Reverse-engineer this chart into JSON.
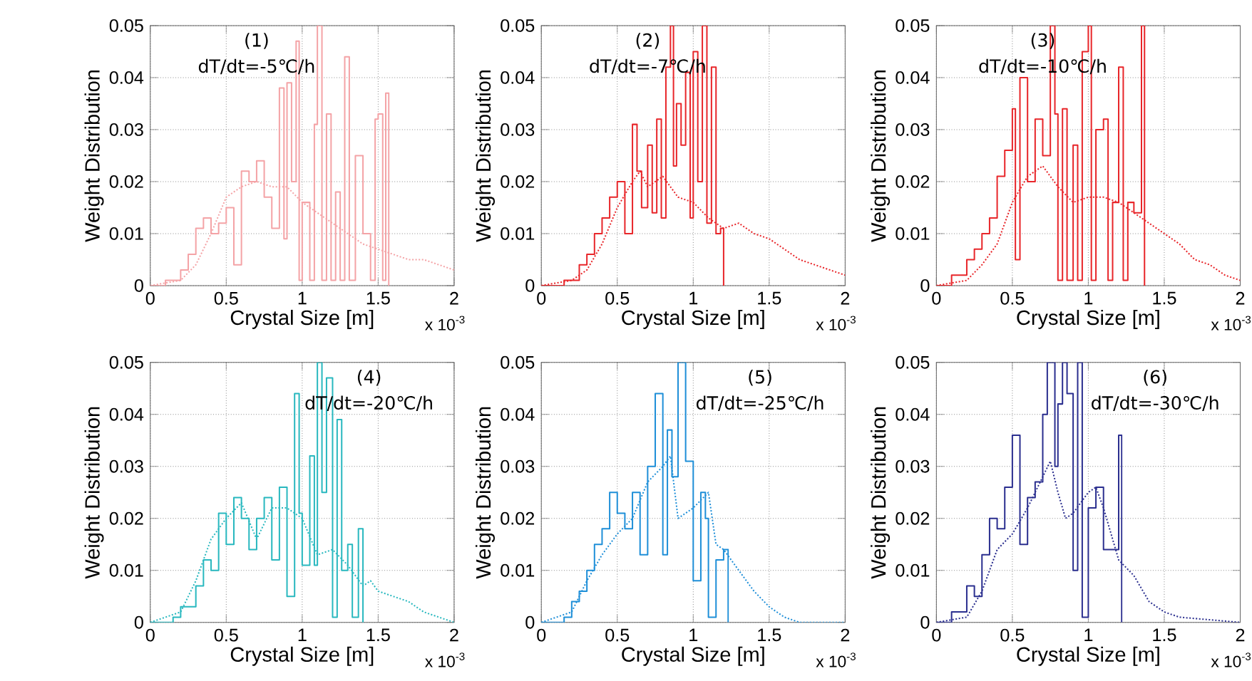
{
  "chart_data": [
    {
      "type": "line",
      "xlabel": "Crystal Size [m]",
      "ylabel": "Weight Distribution",
      "annotations": [
        "(1)",
        "dT/dt=-5℃/h",
        "x 10$^{-3}$"
      ],
      "xlim": [
        0,
        2
      ],
      "ylim": [
        0,
        0.05
      ],
      "xticks": [
        0,
        0.5,
        1,
        1.5,
        2
      ],
      "yticks": [
        0,
        0.01,
        0.02,
        0.03,
        0.04,
        0.05
      ],
      "grid": true,
      "series": [
        {
          "type": "step",
          "color": "#f4a3a6",
          "x": [
            0,
            0.1,
            0.2,
            0.25,
            0.3,
            0.35,
            0.4,
            0.45,
            0.5,
            0.55,
            0.6,
            0.65,
            0.7,
            0.75,
            0.8,
            0.85,
            0.88,
            0.9,
            0.93,
            0.96,
            0.98,
            1.0,
            1.05,
            1.08,
            1.1,
            1.13,
            1.16,
            1.19,
            1.22,
            1.25,
            1.28,
            1.31,
            1.35,
            1.4,
            1.45,
            1.48,
            1.5,
            1.53,
            1.55,
            1.57
          ],
          "values": [
            0,
            0.001,
            0.003,
            0.006,
            0.011,
            0.013,
            0.01,
            0.012,
            0.015,
            0.004,
            0.022,
            0.02,
            0.024,
            0.017,
            0.011,
            0.038,
            0.009,
            0.039,
            0.02,
            0.047,
            0.001,
            0.016,
            0.001,
            0.031,
            0.05,
            0.001,
            0.033,
            0.001,
            0.018,
            0.001,
            0.044,
            0.001,
            0.025,
            0.01,
            0.001,
            0.032,
            0.033,
            0.001,
            0.037,
            0
          ]
        },
        {
          "color": "#f4a3a6",
          "line_style": "dotted",
          "x": [
            0,
            0.2,
            0.3,
            0.4,
            0.5,
            0.6,
            0.7,
            0.8,
            0.9,
            1.0,
            1.1,
            1.2,
            1.3,
            1.4,
            1.5,
            1.6,
            1.7,
            1.8,
            1.9,
            2.0
          ],
          "values": [
            0,
            0.001,
            0.004,
            0.01,
            0.017,
            0.019,
            0.02,
            0.019,
            0.019,
            0.016,
            0.014,
            0.012,
            0.01,
            0.008,
            0.007,
            0.006,
            0.005,
            0.005,
            0.004,
            0.003
          ]
        }
      ]
    },
    {
      "type": "line",
      "xlabel": "Crystal Size [m]",
      "ylabel": "Weight Distribution",
      "annotations": [
        "(2)",
        "dT/dt=-7℃/h",
        "x 10$^{-3}$"
      ],
      "xlim": [
        0,
        2
      ],
      "ylim": [
        0,
        0.05
      ],
      "xticks": [
        0,
        0.5,
        1,
        1.5,
        2
      ],
      "yticks": [
        0,
        0.01,
        0.02,
        0.03,
        0.04,
        0.05
      ],
      "grid": true,
      "series": [
        {
          "type": "step",
          "color": "#e8262a",
          "x": [
            0,
            0.15,
            0.25,
            0.3,
            0.35,
            0.4,
            0.45,
            0.5,
            0.55,
            0.6,
            0.63,
            0.66,
            0.7,
            0.73,
            0.76,
            0.79,
            0.82,
            0.85,
            0.87,
            0.89,
            0.92,
            0.95,
            0.98,
            1.0,
            1.03,
            1.06,
            1.09,
            1.12,
            1.15,
            1.18,
            1.2
          ],
          "values": [
            0,
            0.001,
            0.004,
            0.006,
            0.01,
            0.013,
            0.017,
            0.02,
            0.01,
            0.031,
            0.022,
            0.015,
            0.027,
            0.014,
            0.032,
            0.013,
            0.042,
            0.05,
            0.023,
            0.035,
            0.027,
            0.041,
            0.013,
            0.045,
            0.02,
            0.05,
            0.012,
            0.042,
            0.01,
            0.011,
            0
          ]
        },
        {
          "color": "#e8262a",
          "line_style": "dotted",
          "x": [
            0,
            0.2,
            0.3,
            0.4,
            0.5,
            0.6,
            0.65,
            0.7,
            0.8,
            0.9,
            1.0,
            1.1,
            1.2,
            1.3,
            1.4,
            1.5,
            1.6,
            1.7,
            1.8,
            1.9,
            2.0
          ],
          "values": [
            0,
            0.001,
            0.003,
            0.008,
            0.015,
            0.02,
            0.022,
            0.019,
            0.021,
            0.017,
            0.016,
            0.013,
            0.011,
            0.012,
            0.01,
            0.009,
            0.007,
            0.005,
            0.004,
            0.003,
            0.002
          ]
        }
      ]
    },
    {
      "type": "line",
      "xlabel": "Crystal Size [m]",
      "ylabel": "Weight Distribution",
      "annotations": [
        "(3)",
        "dT/dt=-10℃/h",
        "x 10$^{-3}$"
      ],
      "xlim": [
        0,
        2
      ],
      "ylim": [
        0,
        0.05
      ],
      "xticks": [
        0,
        0.5,
        1,
        1.5,
        2
      ],
      "yticks": [
        0,
        0.01,
        0.02,
        0.03,
        0.04,
        0.05
      ],
      "grid": true,
      "series": [
        {
          "type": "step",
          "color": "#e8262a",
          "x": [
            0,
            0.1,
            0.2,
            0.25,
            0.3,
            0.35,
            0.4,
            0.45,
            0.5,
            0.52,
            0.55,
            0.6,
            0.65,
            0.7,
            0.75,
            0.78,
            0.8,
            0.83,
            0.86,
            0.9,
            0.93,
            0.96,
            1.0,
            1.02,
            1.05,
            1.1,
            1.13,
            1.16,
            1.2,
            1.23,
            1.26,
            1.3,
            1.35,
            1.37
          ],
          "values": [
            0,
            0.002,
            0.005,
            0.007,
            0.01,
            0.013,
            0.021,
            0.026,
            0.034,
            0.005,
            0.04,
            0.02,
            0.032,
            0.025,
            0.05,
            0.033,
            0.001,
            0.034,
            0.001,
            0.027,
            0.001,
            0.045,
            0.05,
            0.001,
            0.03,
            0.032,
            0.001,
            0.016,
            0.042,
            0.001,
            0.016,
            0.014,
            0.05,
            0
          ]
        },
        {
          "color": "#e8262a",
          "line_style": "dotted",
          "x": [
            0,
            0.2,
            0.3,
            0.4,
            0.5,
            0.6,
            0.7,
            0.8,
            0.9,
            1.0,
            1.1,
            1.2,
            1.3,
            1.4,
            1.5,
            1.6,
            1.7,
            1.8,
            1.9,
            2.0
          ],
          "values": [
            0,
            0.001,
            0.004,
            0.008,
            0.016,
            0.021,
            0.023,
            0.019,
            0.016,
            0.017,
            0.017,
            0.016,
            0.014,
            0.012,
            0.01,
            0.008,
            0.005,
            0.004,
            0.002,
            0.001
          ]
        }
      ]
    },
    {
      "type": "line",
      "xlabel": "Crystal Size [m]",
      "ylabel": "Weight Distribution",
      "annotations": [
        "(4)",
        "dT/dt=-20℃/h",
        "x 10$^{-3}$"
      ],
      "xlim": [
        0,
        2
      ],
      "ylim": [
        0,
        0.05
      ],
      "xticks": [
        0,
        0.5,
        1,
        1.5,
        2
      ],
      "yticks": [
        0,
        0.01,
        0.02,
        0.03,
        0.04,
        0.05
      ],
      "grid": true,
      "series": [
        {
          "type": "step",
          "color": "#29b8bf",
          "x": [
            0,
            0.15,
            0.2,
            0.3,
            0.35,
            0.4,
            0.45,
            0.5,
            0.55,
            0.6,
            0.65,
            0.7,
            0.75,
            0.8,
            0.85,
            0.9,
            0.95,
            0.98,
            1.0,
            1.05,
            1.08,
            1.1,
            1.13,
            1.16,
            1.2,
            1.23,
            1.26,
            1.3,
            1.33,
            1.37,
            1.4
          ],
          "values": [
            0,
            0.001,
            0.003,
            0.007,
            0.012,
            0.01,
            0.021,
            0.015,
            0.024,
            0.02,
            0.014,
            0.02,
            0.024,
            0.012,
            0.026,
            0.005,
            0.044,
            0.021,
            0.011,
            0.032,
            0.011,
            0.05,
            0.025,
            0.047,
            0.001,
            0.039,
            0.01,
            0.015,
            0.001,
            0.018,
            0
          ]
        },
        {
          "color": "#29b8bf",
          "line_style": "dotted",
          "x": [
            0,
            0.2,
            0.3,
            0.4,
            0.5,
            0.6,
            0.7,
            0.8,
            0.9,
            1.0,
            1.1,
            1.2,
            1.3,
            1.4,
            1.45,
            1.5,
            1.6,
            1.7,
            1.8,
            1.9,
            2.0
          ],
          "values": [
            0,
            0.002,
            0.008,
            0.016,
            0.02,
            0.023,
            0.016,
            0.022,
            0.022,
            0.02,
            0.013,
            0.014,
            0.011,
            0.007,
            0.008,
            0.006,
            0.005,
            0.004,
            0.002,
            0.001,
            0
          ]
        }
      ]
    },
    {
      "type": "line",
      "xlabel": "Crystal Size [m]",
      "ylabel": "Weight Distribution",
      "annotations": [
        "(5)",
        "dT/dt=-25℃/h",
        "x 10$^{-3}$"
      ],
      "xlim": [
        0,
        2
      ],
      "ylim": [
        0,
        0.05
      ],
      "xticks": [
        0,
        0.5,
        1,
        1.5,
        2
      ],
      "yticks": [
        0,
        0.01,
        0.02,
        0.03,
        0.04,
        0.05
      ],
      "grid": true,
      "series": [
        {
          "type": "step",
          "color": "#1f8fd8",
          "x": [
            0,
            0.15,
            0.2,
            0.25,
            0.3,
            0.35,
            0.4,
            0.45,
            0.5,
            0.55,
            0.6,
            0.65,
            0.7,
            0.75,
            0.8,
            0.83,
            0.86,
            0.9,
            0.95,
            1.0,
            1.05,
            1.08,
            1.1,
            1.15,
            1.2,
            1.23
          ],
          "values": [
            0,
            0.001,
            0.004,
            0.006,
            0.01,
            0.015,
            0.018,
            0.025,
            0.021,
            0.018,
            0.025,
            0.013,
            0.03,
            0.044,
            0.013,
            0.037,
            0.028,
            0.05,
            0.031,
            0.008,
            0.025,
            0.02,
            0.001,
            0.012,
            0.014,
            0
          ]
        },
        {
          "color": "#1f8fd8",
          "line_style": "dotted",
          "x": [
            0,
            0.2,
            0.3,
            0.4,
            0.5,
            0.6,
            0.7,
            0.8,
            0.85,
            0.9,
            0.95,
            1.0,
            1.1,
            1.15,
            1.2,
            1.3,
            1.4,
            1.5,
            1.6,
            1.7,
            2.0
          ],
          "values": [
            0,
            0.002,
            0.008,
            0.013,
            0.017,
            0.02,
            0.027,
            0.03,
            0.032,
            0.02,
            0.021,
            0.022,
            0.025,
            0.015,
            0.014,
            0.01,
            0.006,
            0.003,
            0.001,
            0,
            0
          ]
        }
      ]
    },
    {
      "type": "line",
      "xlabel": "Crystal Size [m]",
      "ylabel": "Weight Distribution",
      "annotations": [
        "(6)",
        "dT/dt=-30℃/h",
        "x 10$^{-3}$"
      ],
      "xlim": [
        0,
        2
      ],
      "ylim": [
        0,
        0.05
      ],
      "xticks": [
        0,
        0.5,
        1,
        1.5,
        2
      ],
      "yticks": [
        0,
        0.01,
        0.02,
        0.03,
        0.04,
        0.05
      ],
      "grid": true,
      "series": [
        {
          "type": "step",
          "color": "#2b2f8f",
          "x": [
            0,
            0.1,
            0.2,
            0.25,
            0.3,
            0.35,
            0.4,
            0.45,
            0.5,
            0.55,
            0.6,
            0.65,
            0.7,
            0.73,
            0.78,
            0.8,
            0.83,
            0.86,
            0.9,
            0.93,
            0.96,
            1.0,
            1.05,
            1.1,
            1.15,
            1.2,
            1.22
          ],
          "values": [
            0,
            0.002,
            0.007,
            0.005,
            0.013,
            0.02,
            0.018,
            0.026,
            0.036,
            0.015,
            0.024,
            0.027,
            0.04,
            0.05,
            0.03,
            0.042,
            0.05,
            0.044,
            0.01,
            0.05,
            0.001,
            0.022,
            0.026,
            0.014,
            0.014,
            0.036,
            0
          ]
        },
        {
          "color": "#2b2f8f",
          "line_style": "dotted",
          "x": [
            0,
            0.2,
            0.3,
            0.4,
            0.5,
            0.6,
            0.7,
            0.75,
            0.8,
            0.85,
            0.9,
            1.0,
            1.05,
            1.1,
            1.2,
            1.3,
            1.4,
            1.5,
            1.6,
            2.0
          ],
          "values": [
            0,
            0.001,
            0.006,
            0.014,
            0.017,
            0.022,
            0.028,
            0.031,
            0.025,
            0.02,
            0.021,
            0.025,
            0.026,
            0.022,
            0.012,
            0.009,
            0.004,
            0.002,
            0.001,
            0
          ]
        }
      ]
    }
  ]
}
